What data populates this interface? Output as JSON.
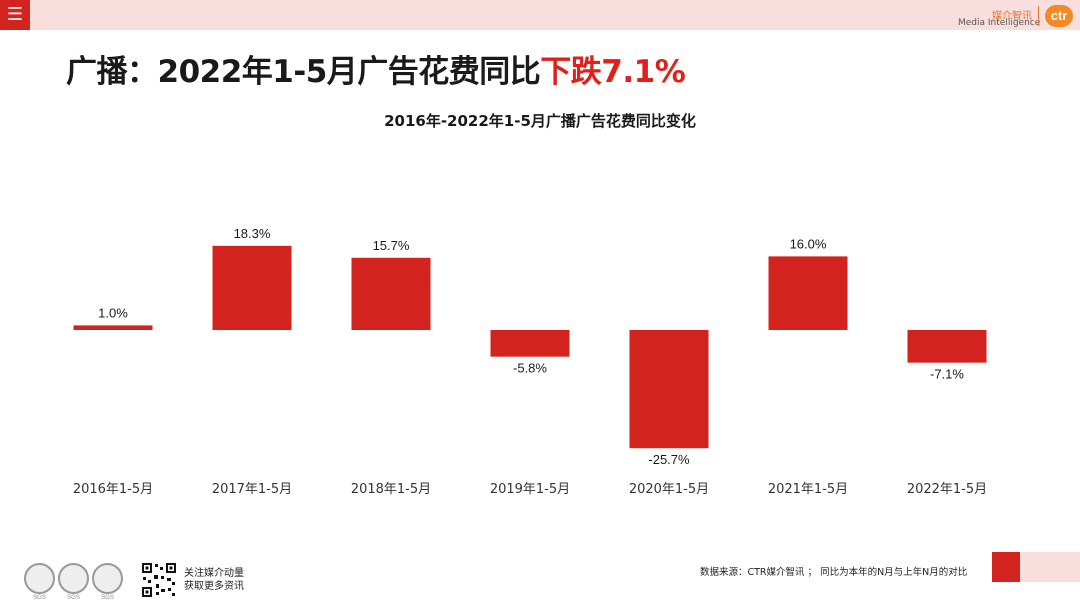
{
  "header": {
    "menu_icon": "menu-icon",
    "brand_cn": "媒介智讯",
    "brand_en": "Media Intelligence",
    "brand_logo": "ctr"
  },
  "headline": {
    "prefix": "广播：2022年1-5月广告花费同比",
    "highlight": "下跌7.1%"
  },
  "chart_data": {
    "type": "bar",
    "title": "2016年-2022年1-5月广播广告花费同比变化",
    "categories": [
      "2016年1-5月",
      "2017年1-5月",
      "2018年1-5月",
      "2019年1-5月",
      "2020年1-5月",
      "2021年1-5月",
      "2022年1-5月"
    ],
    "values": [
      1.0,
      18.3,
      15.7,
      -5.8,
      -25.7,
      16.0,
      -7.1
    ],
    "data_labels": [
      "1.0%",
      "18.3%",
      "15.7%",
      "-5.8%",
      "-25.7%",
      "16.0%",
      "-7.1%"
    ],
    "unit": "%",
    "bar_color": "#d2231e",
    "grid": false,
    "legend": "none"
  },
  "footer": {
    "follow_line1": "关注媒介动量",
    "follow_line2": "获取更多资讯",
    "source": "数据来源：CTR媒介智讯 ； 同比为本年的N月与上年N月的对比"
  },
  "colors": {
    "accent": "#d2231e",
    "topbar": "#f9dede",
    "headline_red": "#e0201a"
  }
}
